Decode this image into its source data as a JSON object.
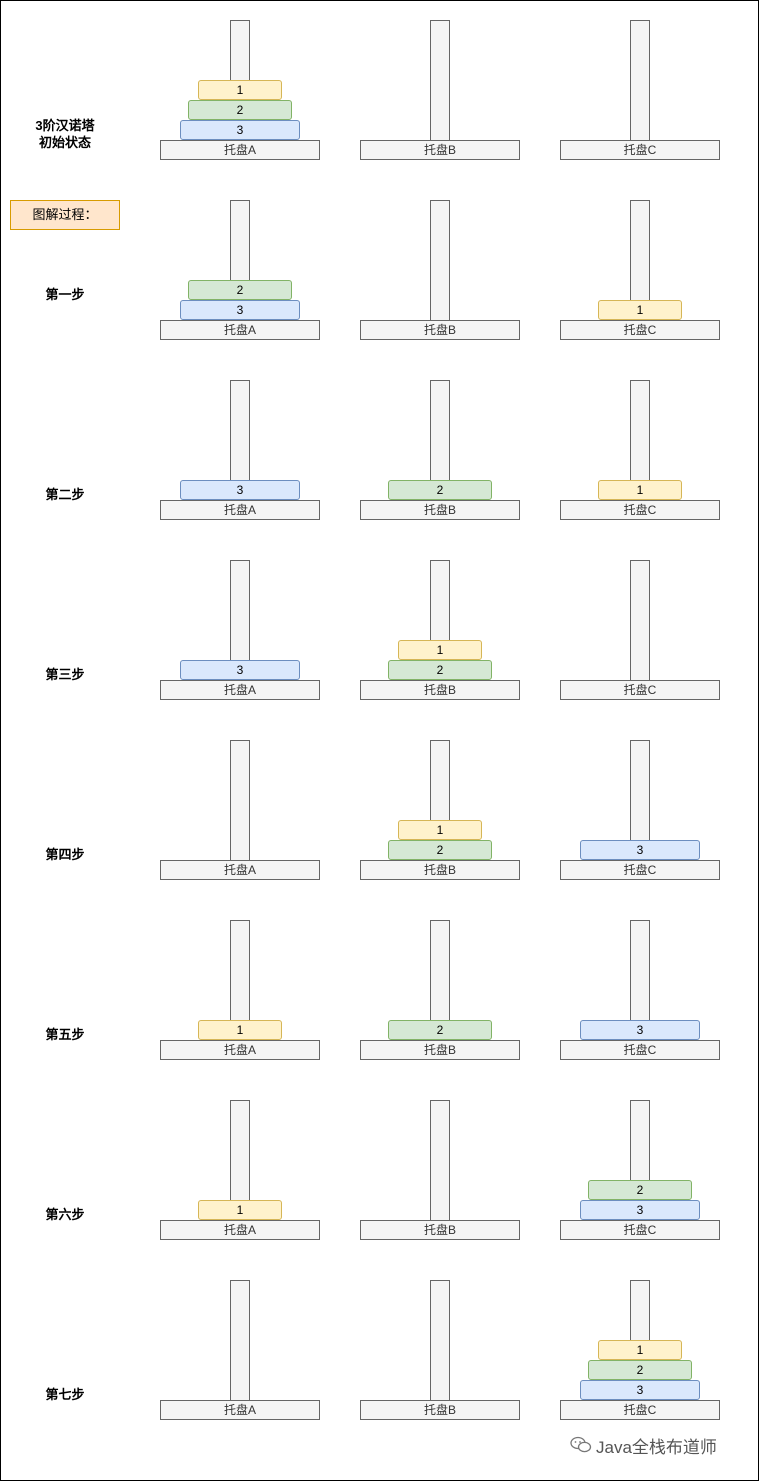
{
  "legend": "图解过程：",
  "watermark": "Java全栈布道师",
  "tray_labels": [
    "托盘A",
    "托盘B",
    "托盘C"
  ],
  "steps": [
    {
      "label": "3阶汉诺塔\n初始状态",
      "towers": [
        [
          3,
          2,
          1
        ],
        [],
        []
      ]
    },
    {
      "label": "第一步",
      "towers": [
        [
          3,
          2
        ],
        [],
        [
          1
        ]
      ]
    },
    {
      "label": "第二步",
      "towers": [
        [
          3
        ],
        [
          2
        ],
        [
          1
        ]
      ]
    },
    {
      "label": "第三步",
      "towers": [
        [
          3
        ],
        [
          2,
          1
        ],
        []
      ]
    },
    {
      "label": "第四步",
      "towers": [
        [],
        [
          2,
          1
        ],
        [
          3
        ]
      ]
    },
    {
      "label": "第五步",
      "towers": [
        [
          1
        ],
        [
          2
        ],
        [
          3
        ]
      ]
    },
    {
      "label": "第六步",
      "towers": [
        [
          1
        ],
        [],
        [
          3,
          2
        ]
      ]
    },
    {
      "label": "第七步",
      "towers": [
        [],
        [],
        [
          3,
          2,
          1
        ]
      ]
    }
  ],
  "colors": {
    "disk1_fill": "#fff2cc",
    "disk1_stroke": "#d6b656",
    "disk2_fill": "#d5e8d4",
    "disk2_stroke": "#82b366",
    "disk3_fill": "#dae8fc",
    "disk3_stroke": "#6c8ebf",
    "tray_fill": "#f5f5f5",
    "tray_stroke": "#666666",
    "legend_fill": "#ffe6cc",
    "legend_stroke": "#d79b00"
  },
  "icons": [
    "wechat-icon"
  ]
}
